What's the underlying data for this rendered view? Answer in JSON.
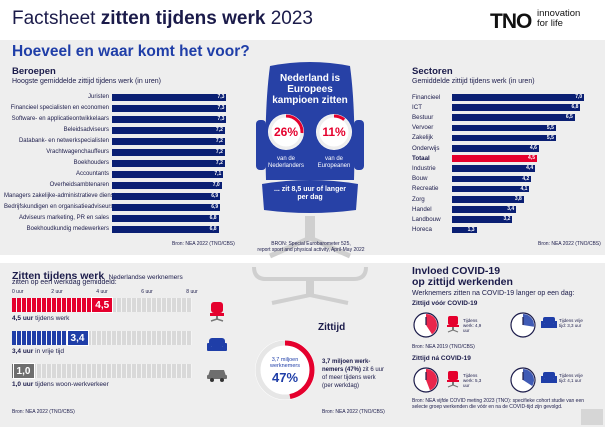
{
  "header": {
    "title_prefix": "Factsheet ",
    "title_bold": "zitten tijdens werk",
    "title_year": " 2023",
    "logo": "TNO",
    "logo_tagline_1": "innovation",
    "logo_tagline_2": "for life"
  },
  "question": "Hoeveel en waar komt het voor?",
  "beroepen": {
    "title": "Beroepen",
    "subtitle": "Hoogste gemiddelde zittijd tijdens werk (in uren)",
    "source": "Bron: NEA 2022 (TNO/CBS)",
    "items": [
      {
        "label": "Juristen",
        "value": "7,3",
        "v": 7.3
      },
      {
        "label": "Financieel specialisten en economen",
        "value": "7,3",
        "v": 7.3
      },
      {
        "label": "Software- en applicatieontwikkelaars",
        "value": "7,3",
        "v": 7.3
      },
      {
        "label": "Beleidsadviseurs",
        "value": "7,2",
        "v": 7.2
      },
      {
        "label": "Databank- en netwerkspecialisten",
        "value": "7,2",
        "v": 7.2
      },
      {
        "label": "Vrachtwagenchauffeurs",
        "value": "7,2",
        "v": 7.2
      },
      {
        "label": "Boekhouders",
        "value": "7,2",
        "v": 7.2
      },
      {
        "label": "Accountants",
        "value": "7,1",
        "v": 7.1
      },
      {
        "label": "Overheidsambtenaren",
        "value": "7,0",
        "v": 7.0
      },
      {
        "label": "Managers zakelijke-administratieve dienstv.",
        "value": "6,9",
        "v": 6.9
      },
      {
        "label": "Bedrijfskundigen en organisatieadviseurs",
        "value": "6,9",
        "v": 6.9
      },
      {
        "label": "Adviseurs marketing, PR en sales",
        "value": "6,8",
        "v": 6.8
      },
      {
        "label": "Boekhoudkundig medewerkers",
        "value": "6,8",
        "v": 6.8
      }
    ]
  },
  "center": {
    "headline_1": "Nederland is",
    "headline_2": "Europees",
    "headline_3": "kampioen zitten",
    "nl_pct": "26%",
    "nl_label_1": "van de",
    "nl_label_2": "Nederlanders",
    "eu_pct": "11%",
    "eu_label_1": "van de",
    "eu_label_2": "Europeanen",
    "bottom_1": "... zit 8,5 uur of langer",
    "bottom_2": "per dag",
    "source_1": "BRON: Special Eurobarometer 525,",
    "source_2": "report sport and physical activity, April-May 2022",
    "nl_fraction": 0.26,
    "eu_fraction": 0.11
  },
  "sectoren": {
    "title": "Sectoren",
    "subtitle": "Gemiddelde zittijd tijdens werk (in uren)",
    "source": "Bron: NEA 2022 (TNO/CBS)",
    "items": [
      {
        "label": "Financieel",
        "value": "7,0",
        "v": 7.0,
        "bold": false
      },
      {
        "label": "ICT",
        "value": "6,8",
        "v": 6.8,
        "bold": false
      },
      {
        "label": "Bestuur",
        "value": "6,5",
        "v": 6.5,
        "bold": false
      },
      {
        "label": "Vervoer",
        "value": "5,5",
        "v": 5.5,
        "bold": false
      },
      {
        "label": "Zakelijk",
        "value": "5,5",
        "v": 5.5,
        "bold": false
      },
      {
        "label": "Onderwijs",
        "value": "4,6",
        "v": 4.6,
        "bold": false
      },
      {
        "label": "Totaal",
        "value": "4,5",
        "v": 4.5,
        "bold": true
      },
      {
        "label": "Industrie",
        "value": "4,4",
        "v": 4.4,
        "bold": false
      },
      {
        "label": "Bouw",
        "value": "4,2",
        "v": 4.2,
        "bold": false
      },
      {
        "label": "Recreatie",
        "value": "4,1",
        "v": 4.1,
        "bold": false
      },
      {
        "label": "Zorg",
        "value": "3,8",
        "v": 3.8,
        "bold": false
      },
      {
        "label": "Handel",
        "value": "3,4",
        "v": 3.4,
        "bold": false
      },
      {
        "label": "Landbouw",
        "value": "3,2",
        "v": 3.2,
        "bold": false
      },
      {
        "label": "Horeca",
        "value": "1,3",
        "v": 1.3,
        "bold": false
      }
    ]
  },
  "zitten": {
    "title": "Zitten tijdens werk",
    "subtitle_1": "Nederlandse werknemers",
    "subtitle_2": "zitten op een werkdag gemiddeld:",
    "axis": [
      "0 uur",
      "2 uur",
      "4 uur",
      "6 uur",
      "8 uur"
    ],
    "rows": [
      {
        "badge": "4,5",
        "label_bold": "4,5 uur",
        "label_rest": " tijdens werk",
        "hours": 4.5,
        "color": "#e5002d"
      },
      {
        "badge": "3,4",
        "label_bold": "3,4 uur",
        "label_rest": " in vrije tijd",
        "hours": 3.4,
        "color": "#1f3ea8"
      },
      {
        "badge": "1,0",
        "label_bold": "1,0 uur",
        "label_rest": " tijdens woon-werkverkeer",
        "hours": 1.0,
        "color": "#6e6e6e"
      }
    ],
    "source": "Bron: NEA 2022 (TNO/CBS)"
  },
  "zittijd": {
    "title": "Zittijd",
    "donut_top_1": "3,7 miljoen",
    "donut_top_2": "werknemers",
    "donut_pct": "47%",
    "fraction": 0.47,
    "text_bold_1": "3,7 miljoen werk-",
    "text_bold_2": "nemers (47%)",
    "text_rest_1": " zit 6 uur",
    "text_rest_2": "of meer tijdens werk",
    "text_rest_3": "(per werkdag)",
    "source": "Bron: NEA 2022 (TNO/CBS)"
  },
  "covid": {
    "title_1": "Invloed COVID-19",
    "title_2": "op zittijd werkenden",
    "subtitle": "Werknemers zitten na COVID-19 langer op een dag:",
    "voor_title": "Zittijd vóór COVID-19",
    "voor_work": "Tijdens werk: 4,9 uur",
    "voor_free": "Tijdens vrije tijd: 3,3 uur",
    "voor_source": "Bron: NEA 2019 (TNO/CBS)",
    "na_title": "Zittijd ná COVID-19",
    "na_work": "Tijdens werk: 5,3 uur",
    "na_free": "Tijdens vrije tijd: 4,1 uur",
    "na_source_1": "Bron: NEA vijfde COVID meting 2023 (TNO): specifieke cohort studie van een",
    "na_source_2": "selecte groep werkenden die vóór en na de COVID-tijd zijn gevolgd.",
    "voor_work_h": 4.9,
    "voor_free_h": 3.3,
    "na_work_h": 5.3,
    "na_free_h": 4.1
  }
}
